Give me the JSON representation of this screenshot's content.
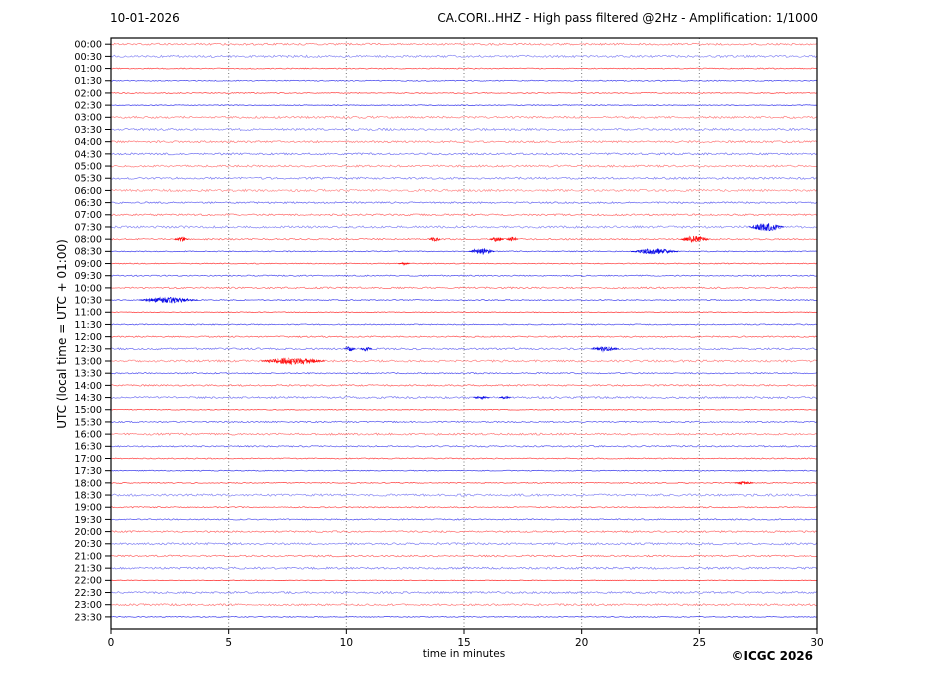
{
  "header": {
    "date": "10-01-2026",
    "title": "CA.CORI..HHZ - High pass filtered @2Hz - Amplification: 1/1000"
  },
  "footer": {
    "copyright": "©ICGC 2026"
  },
  "chart_data": {
    "type": "helicorder",
    "title": "CA.CORI..HHZ - High pass filtered @2Hz - Amplification: 1/1000",
    "date": "10-01-2026",
    "xlabel": "time in minutes",
    "ylabel": "UTC (local time = UTC + 01:00)",
    "x_range": [
      0,
      30
    ],
    "x_ticks": [
      0,
      5,
      10,
      15,
      20,
      25,
      30
    ],
    "grid_minutes": [
      5,
      10,
      15,
      20,
      25
    ],
    "minutes_per_row": 30,
    "row_labels": [
      "00:00",
      "00:30",
      "01:00",
      "01:30",
      "02:00",
      "02:30",
      "03:00",
      "03:30",
      "04:00",
      "04:30",
      "05:00",
      "05:30",
      "06:00",
      "06:30",
      "07:00",
      "07:30",
      "08:00",
      "08:30",
      "09:00",
      "09:30",
      "10:00",
      "10:30",
      "11:00",
      "11:30",
      "12:00",
      "12:30",
      "13:00",
      "13:30",
      "14:00",
      "14:30",
      "15:00",
      "15:30",
      "16:00",
      "16:30",
      "17:00",
      "17:30",
      "18:00",
      "18:30",
      "19:00",
      "19:30",
      "20:00",
      "20:30",
      "21:00",
      "21:30",
      "22:00",
      "22:30",
      "23:00",
      "23:30"
    ],
    "colors": {
      "hour_trace": "#ff0000",
      "half_hour_trace": "#0000e6",
      "grid": "#777777",
      "axis": "#000000",
      "text": "#000000"
    },
    "events": [
      {
        "row": "07:30",
        "bursts": [
          {
            "start": 27.1,
            "end": 28.6,
            "amp": 4.0
          }
        ]
      },
      {
        "row": "08:00",
        "bursts": [
          {
            "start": 2.7,
            "end": 3.3,
            "amp": 2.0
          },
          {
            "start": 13.5,
            "end": 14.0,
            "amp": 2.0
          },
          {
            "start": 16.1,
            "end": 16.7,
            "amp": 2.2
          },
          {
            "start": 16.8,
            "end": 17.3,
            "amp": 2.2
          },
          {
            "start": 24.2,
            "end": 25.4,
            "amp": 3.0
          }
        ]
      },
      {
        "row": "08:30",
        "bursts": [
          {
            "start": 15.2,
            "end": 16.3,
            "amp": 3.0
          },
          {
            "start": 22.1,
            "end": 24.1,
            "amp": 2.5
          }
        ]
      },
      {
        "row": "09:00",
        "bursts": [
          {
            "start": 12.2,
            "end": 12.7,
            "amp": 1.0
          }
        ]
      },
      {
        "row": "10:30",
        "bursts": [
          {
            "start": 1.2,
            "end": 3.7,
            "amp": 2.5
          }
        ]
      },
      {
        "row": "12:30",
        "bursts": [
          {
            "start": 9.9,
            "end": 10.4,
            "amp": 2.0
          },
          {
            "start": 10.6,
            "end": 11.1,
            "amp": 2.0
          },
          {
            "start": 20.4,
            "end": 21.6,
            "amp": 2.0
          }
        ]
      },
      {
        "row": "13:00",
        "bursts": [
          {
            "start": 6.4,
            "end": 9.1,
            "amp": 3.2
          }
        ]
      },
      {
        "row": "14:30",
        "bursts": [
          {
            "start": 15.4,
            "end": 16.1,
            "amp": 1.3
          },
          {
            "start": 16.5,
            "end": 17.0,
            "amp": 1.0
          }
        ]
      },
      {
        "row": "18:00",
        "bursts": [
          {
            "start": 26.5,
            "end": 27.3,
            "amp": 1.0
          }
        ]
      }
    ]
  }
}
